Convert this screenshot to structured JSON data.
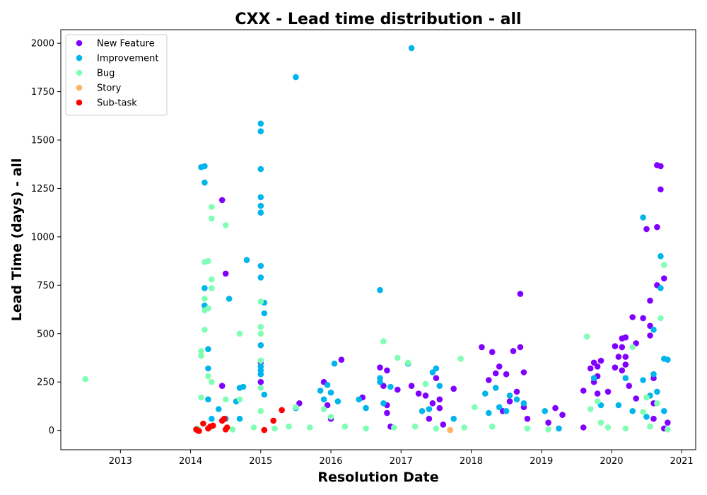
{
  "chart_data": {
    "type": "scatter",
    "title": "CXX - Lead time distribution - all",
    "xlabel": "Resolution Date",
    "ylabel": "Lead Time (days) - all",
    "xlim": [
      2012.15,
      2021.2
    ],
    "ylim": [
      -100,
      2070
    ],
    "x_ticks": [
      2013,
      2014,
      2015,
      2016,
      2017,
      2018,
      2019,
      2020,
      2021
    ],
    "y_ticks": [
      0,
      250,
      500,
      750,
      1000,
      1250,
      1500,
      1750,
      2000
    ],
    "grid": false,
    "legend_position": "top-left",
    "series": [
      {
        "name": "New Feature",
        "color": "#8000ff",
        "points": [
          [
            2014.45,
            1190
          ],
          [
            2014.45,
            230
          ],
          [
            2014.5,
            810
          ],
          [
            2015.0,
            350
          ],
          [
            2015.0,
            250
          ],
          [
            2015.55,
            140
          ],
          [
            2015.9,
            250
          ],
          [
            2015.95,
            130
          ],
          [
            2016.0,
            60
          ],
          [
            2016.15,
            365
          ],
          [
            2016.45,
            170
          ],
          [
            2016.7,
            325
          ],
          [
            2016.75,
            230
          ],
          [
            2016.8,
            310
          ],
          [
            2016.8,
            130
          ],
          [
            2016.8,
            90
          ],
          [
            2016.85,
            20
          ],
          [
            2016.95,
            210
          ],
          [
            2017.15,
            230
          ],
          [
            2017.25,
            190
          ],
          [
            2017.35,
            180
          ],
          [
            2017.4,
            60
          ],
          [
            2017.45,
            140
          ],
          [
            2017.5,
            270
          ],
          [
            2017.55,
            160
          ],
          [
            2017.55,
            115
          ],
          [
            2017.6,
            30
          ],
          [
            2017.75,
            215
          ],
          [
            2018.15,
            430
          ],
          [
            2018.25,
            260
          ],
          [
            2018.3,
            405
          ],
          [
            2018.35,
            295
          ],
          [
            2018.4,
            330
          ],
          [
            2018.45,
            100
          ],
          [
            2018.5,
            290
          ],
          [
            2018.55,
            150
          ],
          [
            2018.6,
            410
          ],
          [
            2018.65,
            200
          ],
          [
            2018.7,
            430
          ],
          [
            2018.7,
            705
          ],
          [
            2018.75,
            300
          ],
          [
            2018.75,
            120
          ],
          [
            2018.8,
            60
          ],
          [
            2019.1,
            40
          ],
          [
            2019.2,
            115
          ],
          [
            2019.3,
            80
          ],
          [
            2019.6,
            15
          ],
          [
            2019.6,
            205
          ],
          [
            2019.7,
            320
          ],
          [
            2019.75,
            350
          ],
          [
            2019.75,
            250
          ],
          [
            2019.8,
            330
          ],
          [
            2019.8,
            280
          ],
          [
            2019.8,
            190
          ],
          [
            2019.85,
            360
          ],
          [
            2019.95,
            200
          ],
          [
            2020.05,
            435
          ],
          [
            2020.05,
            325
          ],
          [
            2020.1,
            380
          ],
          [
            2020.15,
            475
          ],
          [
            2020.15,
            430
          ],
          [
            2020.15,
            310
          ],
          [
            2020.2,
            480
          ],
          [
            2020.2,
            380
          ],
          [
            2020.2,
            340
          ],
          [
            2020.25,
            230
          ],
          [
            2020.3,
            585
          ],
          [
            2020.35,
            450
          ],
          [
            2020.35,
            165
          ],
          [
            2020.45,
            580
          ],
          [
            2020.5,
            1040
          ],
          [
            2020.55,
            670
          ],
          [
            2020.55,
            540
          ],
          [
            2020.55,
            490
          ],
          [
            2020.6,
            270
          ],
          [
            2020.6,
            140
          ],
          [
            2020.6,
            60
          ],
          [
            2020.65,
            1050
          ],
          [
            2020.65,
            750
          ],
          [
            2020.65,
            1370
          ],
          [
            2020.7,
            1245
          ],
          [
            2020.7,
            1365
          ],
          [
            2020.75,
            785
          ],
          [
            2020.75,
            10
          ],
          [
            2020.8,
            40
          ]
        ]
      },
      {
        "name": "Improvement",
        "color": "#00b5eb",
        "points": [
          [
            2014.15,
            1360
          ],
          [
            2014.2,
            1365
          ],
          [
            2014.2,
            1280
          ],
          [
            2014.2,
            735
          ],
          [
            2014.2,
            645
          ],
          [
            2014.25,
            320
          ],
          [
            2014.25,
            420
          ],
          [
            2014.25,
            160
          ],
          [
            2014.3,
            60
          ],
          [
            2014.4,
            110
          ],
          [
            2014.5,
            60
          ],
          [
            2014.55,
            680
          ],
          [
            2014.65,
            150
          ],
          [
            2014.7,
            220
          ],
          [
            2014.7,
            60
          ],
          [
            2014.75,
            225
          ],
          [
            2014.8,
            880
          ],
          [
            2015.0,
            1585
          ],
          [
            2015.0,
            1545
          ],
          [
            2015.0,
            1350
          ],
          [
            2015.0,
            1205
          ],
          [
            2015.0,
            1160
          ],
          [
            2015.0,
            1125
          ],
          [
            2015.0,
            850
          ],
          [
            2015.0,
            790
          ],
          [
            2015.0,
            440
          ],
          [
            2015.0,
            360
          ],
          [
            2015.0,
            330
          ],
          [
            2015.0,
            310
          ],
          [
            2015.0,
            290
          ],
          [
            2015.05,
            660
          ],
          [
            2015.05,
            605
          ],
          [
            2015.05,
            185
          ],
          [
            2015.5,
            1825
          ],
          [
            2015.5,
            115
          ],
          [
            2015.85,
            205
          ],
          [
            2015.9,
            160
          ],
          [
            2015.95,
            235
          ],
          [
            2016.0,
            195
          ],
          [
            2016.05,
            345
          ],
          [
            2016.1,
            150
          ],
          [
            2016.4,
            160
          ],
          [
            2016.5,
            115
          ],
          [
            2016.7,
            725
          ],
          [
            2016.7,
            270
          ],
          [
            2016.7,
            250
          ],
          [
            2016.75,
            140
          ],
          [
            2016.85,
            225
          ],
          [
            2017.1,
            345
          ],
          [
            2017.15,
            1975
          ],
          [
            2017.3,
            100
          ],
          [
            2017.4,
            110
          ],
          [
            2017.45,
            300
          ],
          [
            2017.5,
            320
          ],
          [
            2017.55,
            230
          ],
          [
            2017.75,
            60
          ],
          [
            2018.2,
            190
          ],
          [
            2018.25,
            90
          ],
          [
            2018.35,
            220
          ],
          [
            2018.4,
            120
          ],
          [
            2018.5,
            100
          ],
          [
            2018.55,
            180
          ],
          [
            2018.65,
            160
          ],
          [
            2018.75,
            140
          ],
          [
            2019.05,
            100
          ],
          [
            2019.25,
            10
          ],
          [
            2019.75,
            270
          ],
          [
            2019.85,
            130
          ],
          [
            2020.1,
            130
          ],
          [
            2020.2,
            270
          ],
          [
            2020.3,
            100
          ],
          [
            2020.45,
            1100
          ],
          [
            2020.45,
            260
          ],
          [
            2020.5,
            70
          ],
          [
            2020.55,
            180
          ],
          [
            2020.6,
            520
          ],
          [
            2020.6,
            290
          ],
          [
            2020.65,
            200
          ],
          [
            2020.7,
            900
          ],
          [
            2020.7,
            735
          ],
          [
            2020.75,
            370
          ],
          [
            2020.75,
            100
          ],
          [
            2020.8,
            365
          ]
        ]
      },
      {
        "name": "Bug",
        "color": "#80ffb4",
        "points": [
          [
            2012.5,
            265
          ],
          [
            2014.15,
            410
          ],
          [
            2014.15,
            385
          ],
          [
            2014.15,
            170
          ],
          [
            2014.2,
            870
          ],
          [
            2014.2,
            680
          ],
          [
            2014.2,
            620
          ],
          [
            2014.2,
            520
          ],
          [
            2014.25,
            875
          ],
          [
            2014.25,
            630
          ],
          [
            2014.25,
            280
          ],
          [
            2014.3,
            1155
          ],
          [
            2014.3,
            1095
          ],
          [
            2014.3,
            780
          ],
          [
            2014.3,
            735
          ],
          [
            2014.3,
            250
          ],
          [
            2014.5,
            1060
          ],
          [
            2014.5,
            160
          ],
          [
            2014.7,
            500
          ],
          [
            2014.7,
            160
          ],
          [
            2015.0,
            665
          ],
          [
            2015.0,
            535
          ],
          [
            2015.0,
            500
          ],
          [
            2015.0,
            360
          ],
          [
            2015.0,
            220
          ],
          [
            2015.0,
            100
          ],
          [
            2015.5,
            120
          ],
          [
            2015.9,
            110
          ],
          [
            2016.0,
            70
          ],
          [
            2016.75,
            460
          ],
          [
            2016.95,
            375
          ],
          [
            2017.1,
            350
          ],
          [
            2017.35,
            240
          ],
          [
            2017.85,
            370
          ],
          [
            2018.05,
            120
          ],
          [
            2019.65,
            485
          ],
          [
            2019.7,
            110
          ],
          [
            2019.8,
            150
          ],
          [
            2019.85,
            40
          ],
          [
            2020.3,
            430
          ],
          [
            2020.45,
            95
          ],
          [
            2020.5,
            170
          ],
          [
            2020.65,
            140
          ],
          [
            2020.7,
            580
          ],
          [
            2020.75,
            855
          ],
          [
            2014.1,
            10
          ],
          [
            2014.3,
            20
          ],
          [
            2014.6,
            5
          ],
          [
            2014.9,
            15
          ],
          [
            2015.2,
            10
          ],
          [
            2015.4,
            20
          ],
          [
            2015.7,
            15
          ],
          [
            2016.2,
            20
          ],
          [
            2016.5,
            10
          ],
          [
            2016.9,
            15
          ],
          [
            2017.2,
            20
          ],
          [
            2017.5,
            10
          ],
          [
            2017.9,
            15
          ],
          [
            2018.3,
            20
          ],
          [
            2018.8,
            10
          ],
          [
            2019.1,
            5
          ],
          [
            2019.95,
            15
          ],
          [
            2020.2,
            10
          ],
          [
            2020.55,
            20
          ],
          [
            2020.8,
            5
          ]
        ]
      },
      {
        "name": "Story",
        "color": "#ffb360",
        "points": [
          [
            2017.7,
            2
          ]
        ]
      },
      {
        "name": "Sub-task",
        "color": "#ff0000",
        "points": [
          [
            2014.08,
            5
          ],
          [
            2014.1,
            0
          ],
          [
            2014.12,
            -3
          ],
          [
            2014.18,
            35
          ],
          [
            2014.25,
            10
          ],
          [
            2014.28,
            20
          ],
          [
            2014.32,
            25
          ],
          [
            2014.45,
            50
          ],
          [
            2014.48,
            60
          ],
          [
            2014.5,
            5
          ],
          [
            2014.52,
            15
          ],
          [
            2015.05,
            2
          ],
          [
            2015.18,
            50
          ],
          [
            2015.3,
            105
          ]
        ]
      }
    ]
  }
}
